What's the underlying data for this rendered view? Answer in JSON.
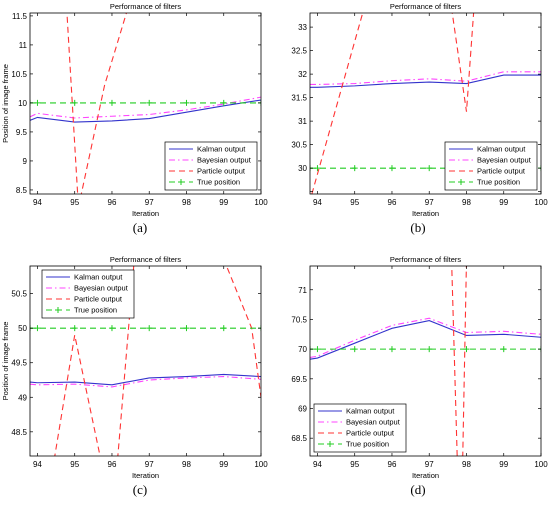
{
  "chart_data": [
    {
      "panel": "(a)",
      "type": "line",
      "title": "Performance of filters",
      "xlabel": "Iteration",
      "ylabel": "Position of image frame",
      "xlim": [
        93.8,
        100
      ],
      "ylim": [
        8.43,
        11.55
      ],
      "xticks": [
        94,
        95,
        96,
        97,
        98,
        99,
        100
      ],
      "yticks": [
        8.5,
        9,
        9.5,
        10,
        10.5,
        11,
        11.5
      ],
      "ytick_labels": [
        "8.5",
        "9",
        "9.5",
        "10",
        "10.5",
        "11",
        "11.5"
      ],
      "legend_position": "lower-right",
      "grid": false,
      "series": [
        {
          "name": "Kalman output",
          "color": "#3333cc",
          "style": "solid",
          "marker": "none",
          "x": [
            93.8,
            94,
            95,
            96,
            97,
            98,
            99,
            100
          ],
          "y": [
            9.7,
            9.75,
            9.67,
            9.69,
            9.73,
            9.84,
            9.95,
            10.05
          ]
        },
        {
          "name": "Bayesian output",
          "color": "#ff44ff",
          "style": "dashdot",
          "marker": "none",
          "x": [
            93.8,
            94,
            95,
            96,
            97,
            98,
            99,
            100
          ],
          "y": [
            9.76,
            9.82,
            9.74,
            9.77,
            9.8,
            9.88,
            9.98,
            10.1
          ]
        },
        {
          "name": "Particle output",
          "color": "#ff3333",
          "style": "dashed",
          "marker": "none",
          "x": [
            94.75,
            95.1,
            95.8,
            96.6
          ],
          "y": [
            12.0,
            8.2,
            10.3,
            12.0
          ]
        },
        {
          "name": "True position",
          "color": "#22cc22",
          "style": "dashed",
          "marker": "plus",
          "x": [
            93.8,
            94,
            95,
            96,
            97,
            98,
            99,
            100
          ],
          "y": [
            10,
            10,
            10,
            10,
            10,
            10,
            10,
            10
          ]
        }
      ]
    },
    {
      "panel": "(b)",
      "type": "line",
      "title": "Performance of filters",
      "xlabel": "Iteration",
      "ylabel": "",
      "xlim": [
        93.8,
        100
      ],
      "ylim": [
        29.45,
        33.3
      ],
      "xticks": [
        94,
        95,
        96,
        97,
        98,
        99,
        100
      ],
      "yticks": [
        29.5,
        30,
        30.5,
        31,
        31.5,
        32,
        32.5,
        33
      ],
      "ytick_labels": [
        "",
        "30",
        "30.5",
        "31",
        "31.5",
        "32",
        "32.5",
        "33"
      ],
      "legend_position": "lower-right",
      "grid": false,
      "series": [
        {
          "name": "Kalman output",
          "color": "#3333cc",
          "style": "solid",
          "marker": "none",
          "x": [
            93.8,
            94,
            95,
            96,
            97,
            98,
            99,
            100
          ],
          "y": [
            31.72,
            31.72,
            31.75,
            31.8,
            31.83,
            31.8,
            31.98,
            31.98
          ]
        },
        {
          "name": "Bayesian output",
          "color": "#ff44ff",
          "style": "dashdot",
          "marker": "none",
          "x": [
            93.8,
            94,
            95,
            96,
            97,
            98,
            99,
            100
          ],
          "y": [
            31.78,
            31.78,
            31.8,
            31.86,
            31.9,
            31.85,
            32.05,
            32.05
          ]
        },
        {
          "name": "Particle output",
          "color": "#ff3333",
          "style": "dashed",
          "marker": "none",
          "x": [
            93.85,
            95.25,
            97.6,
            98.0,
            98.2
          ],
          "y": [
            29.45,
            33.4,
            33.4,
            31.2,
            33.4
          ]
        },
        {
          "name": "True position",
          "color": "#22cc22",
          "style": "dashed",
          "marker": "plus",
          "x": [
            93.8,
            94,
            95,
            96,
            97,
            98,
            99,
            100
          ],
          "y": [
            30,
            30,
            30,
            30,
            30,
            30,
            30,
            30
          ]
        }
      ]
    },
    {
      "panel": "(c)",
      "type": "line",
      "title": "Performance of filters",
      "xlabel": "Iteration",
      "ylabel": "Position of image frame",
      "xlim": [
        93.8,
        100
      ],
      "ylim": [
        48.15,
        50.9
      ],
      "xticks": [
        94,
        95,
        96,
        97,
        98,
        99,
        100
      ],
      "yticks": [
        48.5,
        49,
        49.5,
        50,
        50.5
      ],
      "ytick_labels": [
        "48.5",
        "49",
        "49.5",
        "50",
        "50.5"
      ],
      "legend_position": "top-left",
      "grid": false,
      "series": [
        {
          "name": "Kalman output",
          "color": "#3333cc",
          "style": "solid",
          "marker": "none",
          "x": [
            93.8,
            94,
            95,
            96,
            97,
            98,
            99,
            100
          ],
          "y": [
            49.22,
            49.21,
            49.22,
            49.18,
            49.28,
            49.3,
            49.33,
            49.3
          ]
        },
        {
          "name": "Bayesian output",
          "color": "#ff44ff",
          "style": "dashdot",
          "marker": "none",
          "x": [
            93.8,
            94,
            95,
            96,
            97,
            98,
            99,
            100
          ],
          "y": [
            49.19,
            49.18,
            49.19,
            49.15,
            49.25,
            49.28,
            49.3,
            49.26
          ]
        },
        {
          "name": "Particle output",
          "color": "#ff3333",
          "style": "dashed",
          "marker": "none",
          "x": [
            94.45,
            95.0,
            95.7,
            96.15,
            96.6,
            99.0,
            99.75,
            100
          ],
          "y": [
            48.1,
            49.9,
            48.1,
            48.1,
            51.0,
            51.0,
            50.0,
            49.0
          ]
        },
        {
          "name": "True position",
          "color": "#22cc22",
          "style": "dashed",
          "marker": "plus",
          "x": [
            93.8,
            94,
            95,
            96,
            97,
            98,
            99,
            100
          ],
          "y": [
            50,
            50,
            50,
            50,
            50,
            50,
            50,
            50
          ]
        }
      ]
    },
    {
      "panel": "(d)",
      "type": "line",
      "title": "Performance of filters",
      "xlabel": "Iteration",
      "ylabel": "",
      "xlim": [
        93.8,
        100
      ],
      "ylim": [
        68.2,
        71.4
      ],
      "xticks": [
        94,
        95,
        96,
        97,
        98,
        99,
        100
      ],
      "yticks": [
        68.5,
        69,
        69.5,
        70,
        70.5,
        71
      ],
      "ytick_labels": [
        "68.5",
        "69",
        "69.5",
        "70",
        "70.5",
        "71"
      ],
      "legend_position": "lower-left",
      "grid": false,
      "series": [
        {
          "name": "Kalman output",
          "color": "#3333cc",
          "style": "solid",
          "marker": "none",
          "x": [
            93.8,
            94,
            95,
            96,
            97,
            98,
            99,
            100
          ],
          "y": [
            69.83,
            69.85,
            70.1,
            70.35,
            70.48,
            70.23,
            70.25,
            70.2
          ]
        },
        {
          "name": "Bayesian output",
          "color": "#ff44ff",
          "style": "dashdot",
          "marker": "none",
          "x": [
            93.8,
            94,
            95,
            96,
            97,
            98,
            99,
            100
          ],
          "y": [
            69.86,
            69.88,
            70.15,
            70.4,
            70.52,
            70.28,
            70.3,
            70.25
          ]
        },
        {
          "name": "Particle output",
          "color": "#ff3333",
          "style": "dashed",
          "marker": "none",
          "x": [
            97.6,
            97.75,
            97.9,
            98.0
          ],
          "y": [
            71.5,
            68.2,
            68.2,
            71.5
          ]
        },
        {
          "name": "True position",
          "color": "#22cc22",
          "style": "dashed",
          "marker": "plus",
          "x": [
            93.8,
            94,
            95,
            96,
            97,
            98,
            99,
            100
          ],
          "y": [
            70,
            70,
            70,
            70,
            70,
            70,
            70,
            70
          ]
        }
      ]
    }
  ]
}
